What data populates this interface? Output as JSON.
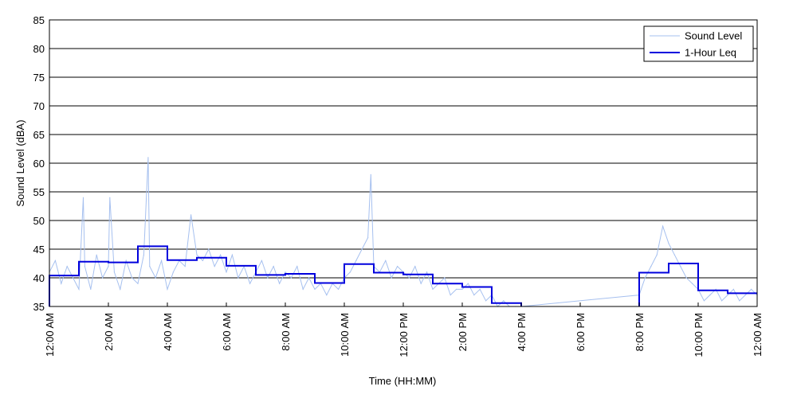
{
  "chart_data": {
    "type": "line",
    "xlabel": "Time (HH:MM)",
    "ylabel": "Sound Level (dBA)",
    "xlim": [
      0,
      24
    ],
    "ylim": [
      35,
      85
    ],
    "yticks": [
      35,
      40,
      45,
      50,
      55,
      60,
      65,
      70,
      75,
      80,
      85
    ],
    "xticks": [
      {
        "hour": 0,
        "label": "12:00 AM"
      },
      {
        "hour": 2,
        "label": "2:00 AM"
      },
      {
        "hour": 4,
        "label": "4:00 AM"
      },
      {
        "hour": 6,
        "label": "6:00 AM"
      },
      {
        "hour": 8,
        "label": "8:00 AM"
      },
      {
        "hour": 10,
        "label": "10:00 AM"
      },
      {
        "hour": 12,
        "label": "12:00 PM"
      },
      {
        "hour": 14,
        "label": "2:00 PM"
      },
      {
        "hour": 16,
        "label": "4:00 PM"
      },
      {
        "hour": 18,
        "label": "6:00 PM"
      },
      {
        "hour": 20,
        "label": "8:00 PM"
      },
      {
        "hour": 22,
        "label": "10:00 PM"
      },
      {
        "hour": 24,
        "label": "12:00 AM"
      }
    ],
    "grid": "horizontal",
    "legend_position": "top-right",
    "colors": {
      "sound_level": "#a6c0ef",
      "leq": "#0000dd"
    },
    "series": [
      {
        "name": "Sound Level",
        "style": "thin-light-blue",
        "x": [
          0,
          0.2,
          0.4,
          0.6,
          0.8,
          1.0,
          1.15,
          1.2,
          1.4,
          1.6,
          1.8,
          2.0,
          2.05,
          2.2,
          2.4,
          2.6,
          2.8,
          3.0,
          3.2,
          3.35,
          3.4,
          3.6,
          3.8,
          4.0,
          4.2,
          4.4,
          4.6,
          4.8,
          5.0,
          5.2,
          5.4,
          5.6,
          5.8,
          6.0,
          6.2,
          6.4,
          6.6,
          6.8,
          7.0,
          7.2,
          7.4,
          7.6,
          7.8,
          8.0,
          8.2,
          8.4,
          8.6,
          8.8,
          9.0,
          9.2,
          9.4,
          9.6,
          9.8,
          10.0,
          10.2,
          10.4,
          10.6,
          10.8,
          10.9,
          11.0,
          11.2,
          11.4,
          11.6,
          11.8,
          12.0,
          12.2,
          12.4,
          12.6,
          12.8,
          13.0,
          13.2,
          13.4,
          13.6,
          13.8,
          14.0,
          14.2,
          14.4,
          14.6,
          14.8,
          15.0,
          15.2,
          15.4,
          15.6,
          15.8,
          16.0,
          20.0,
          20.2,
          20.4,
          20.6,
          20.8,
          21.0,
          21.2,
          21.4,
          21.6,
          21.8,
          22.0,
          22.2,
          22.4,
          22.6,
          22.8,
          23.0,
          23.2,
          23.4,
          23.6,
          23.8,
          24.0
        ],
        "values": [
          41,
          43,
          39,
          42,
          40,
          38,
          54,
          42,
          38,
          44,
          40,
          42,
          54,
          41,
          38,
          43,
          40,
          39,
          44,
          61,
          42,
          40,
          43,
          38,
          41,
          43,
          42,
          51,
          44,
          43,
          45,
          42,
          44,
          41,
          44,
          40,
          42,
          39,
          41,
          43,
          40,
          42,
          39,
          41,
          40,
          42,
          38,
          40,
          38,
          39,
          37,
          39,
          38,
          40,
          41,
          43,
          45,
          47,
          58,
          42,
          41,
          43,
          40,
          42,
          41,
          40,
          42,
          39,
          41,
          38,
          39,
          40,
          37,
          38,
          38,
          39,
          37,
          38,
          36,
          37,
          35,
          36,
          35,
          35,
          35,
          37,
          40,
          42,
          44,
          49,
          46,
          44,
          42,
          40,
          39,
          38,
          36,
          37,
          38,
          36,
          37,
          38,
          36,
          37,
          38,
          37
        ]
      },
      {
        "name": "1-Hour Leq",
        "style": "thick-blue-step",
        "x": [
          0,
          1,
          2,
          3,
          4,
          5,
          6,
          7,
          8,
          9,
          10,
          11,
          12,
          13,
          14,
          15,
          16,
          20,
          21,
          22,
          23,
          24
        ],
        "values": [
          40.4,
          42.8,
          42.7,
          45.5,
          43.1,
          43.5,
          42.1,
          40.5,
          40.7,
          39.1,
          42.4,
          40.9,
          40.6,
          39.0,
          38.4,
          35.6,
          null,
          40.9,
          42.5,
          37.8,
          37.3,
          37.3
        ]
      }
    ]
  }
}
